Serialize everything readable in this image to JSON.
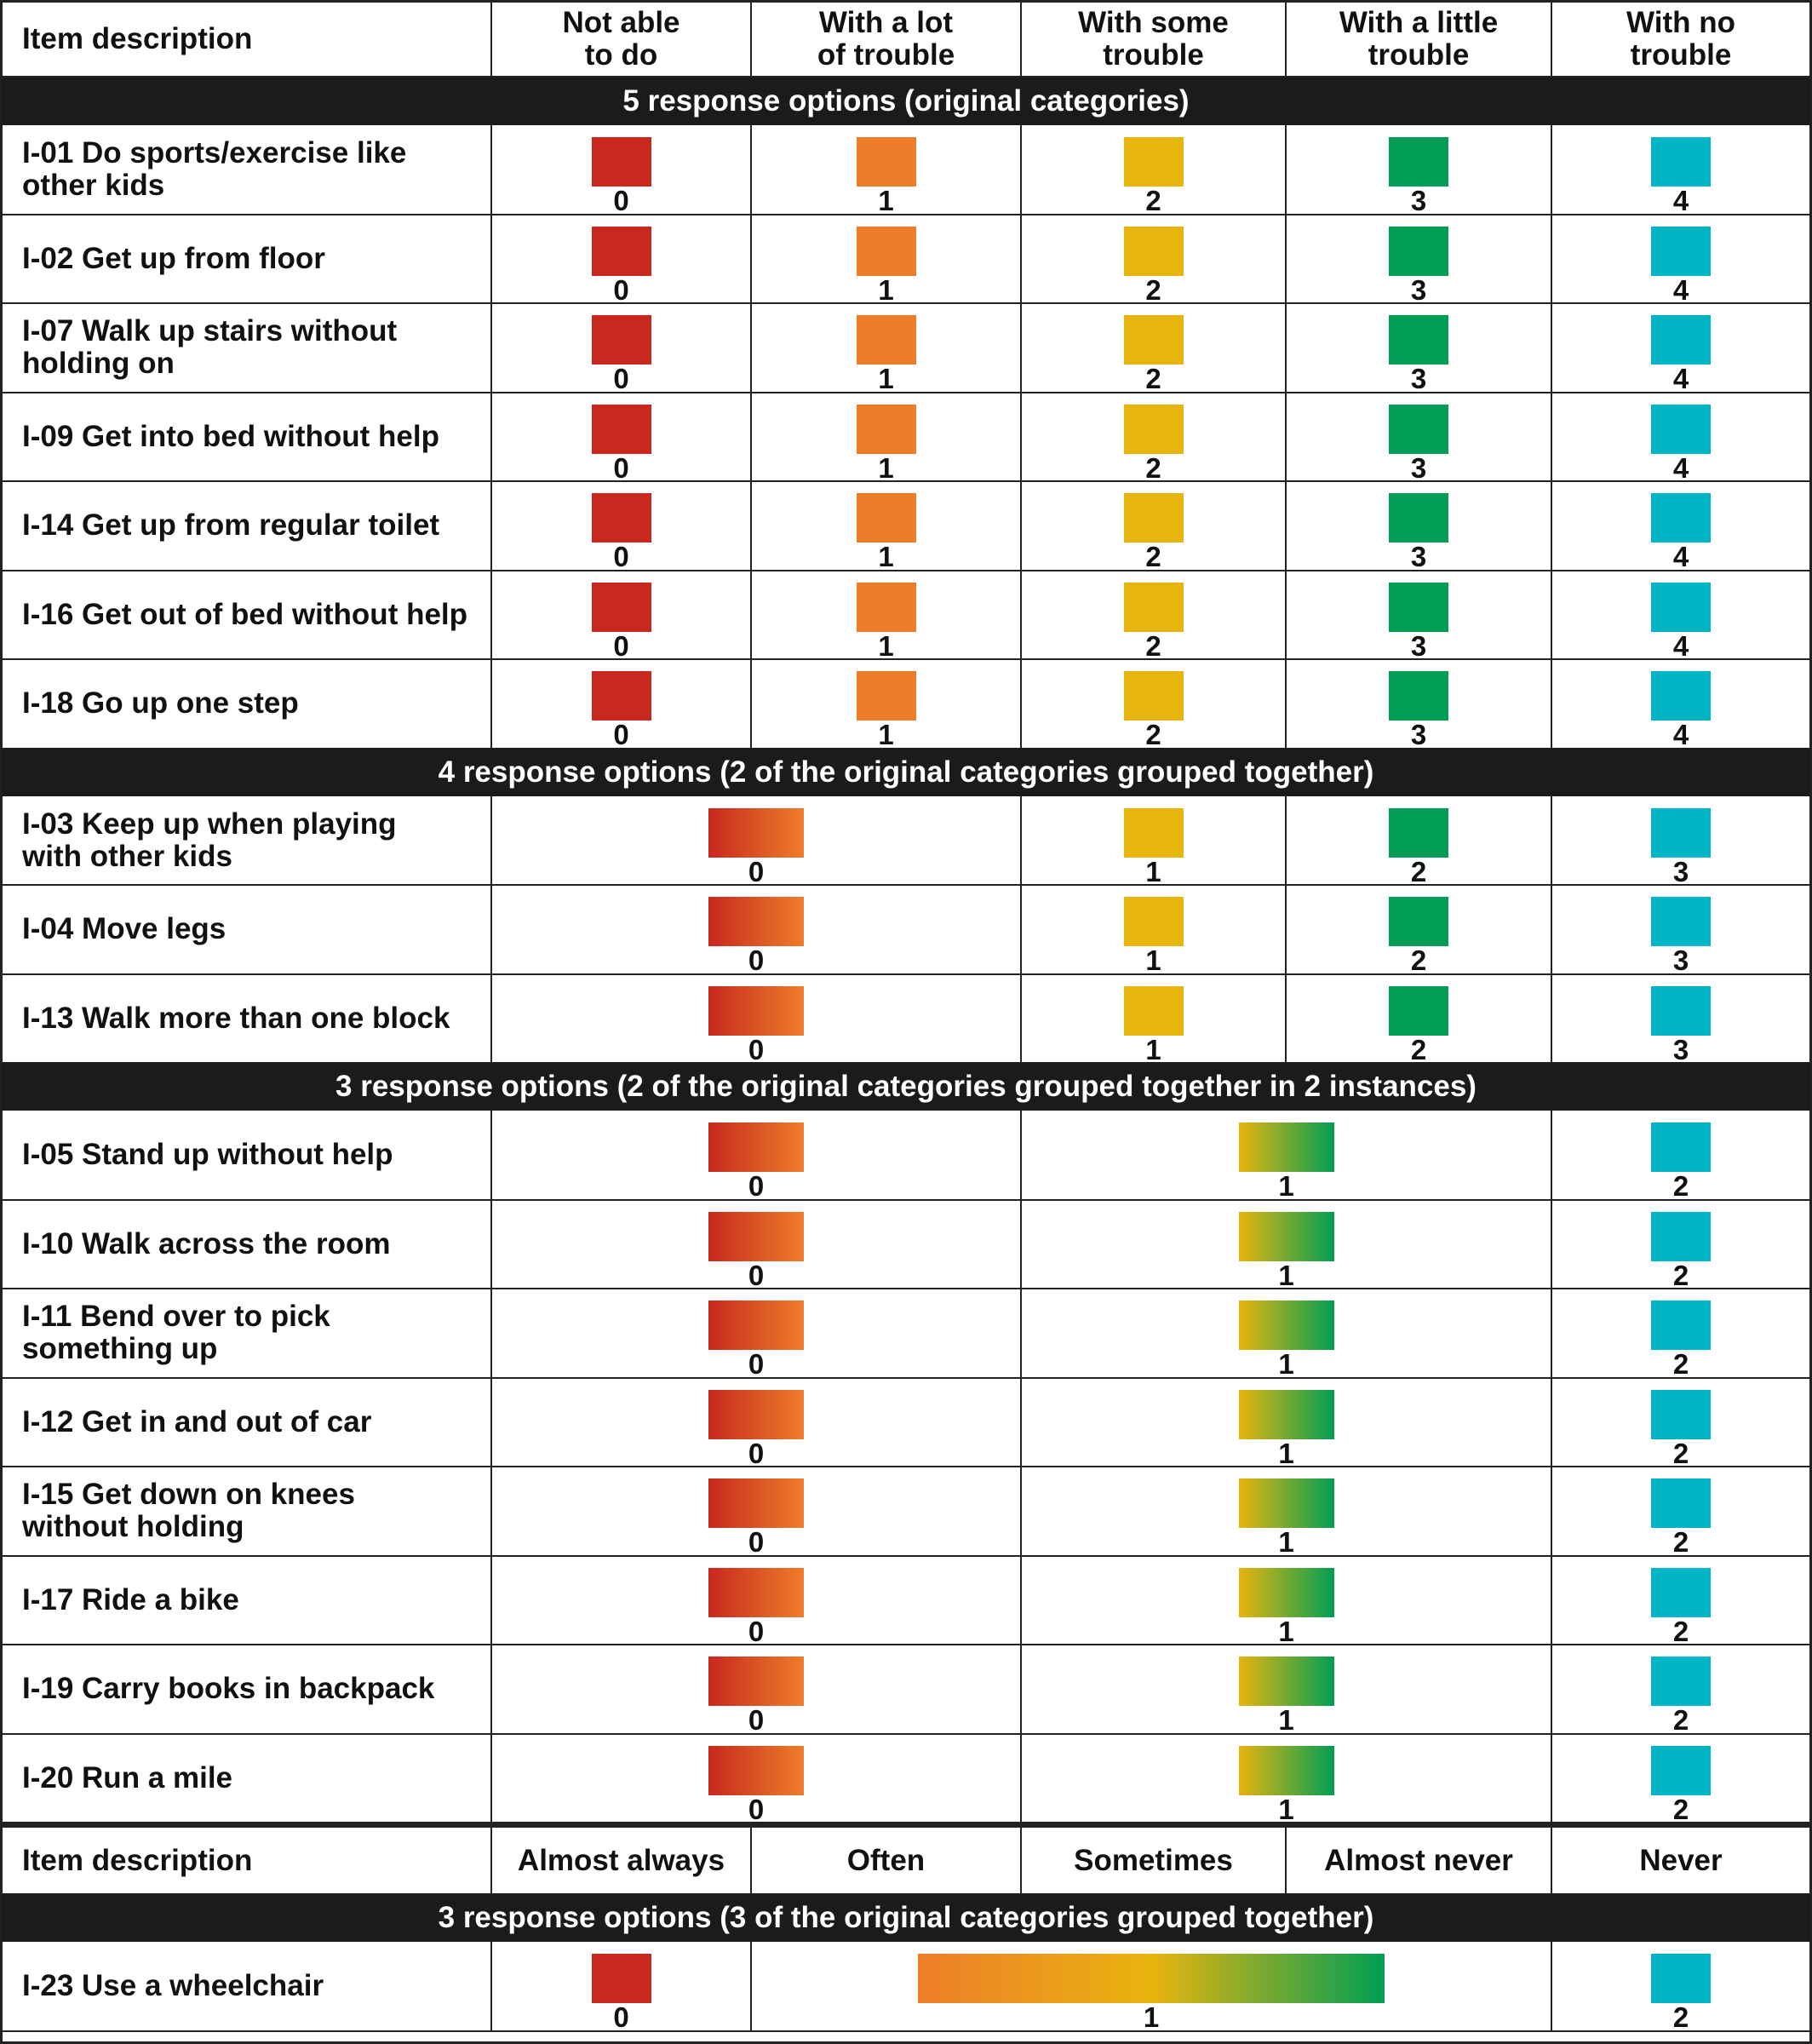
{
  "header_top": {
    "item_label": "Item description",
    "columns": [
      "Not able\nto do",
      "With a lot\nof trouble",
      "With some\ntrouble",
      "With a little\ntrouble",
      "With no\ntrouble"
    ]
  },
  "header_bottom": {
    "item_label": "Item description",
    "columns": [
      "Almost always",
      "Often",
      "Sometimes",
      "Almost never",
      "Never"
    ]
  },
  "colors": {
    "red": "#c8281e",
    "orange": "#ee7d2a",
    "yellow": "#e8b40e",
    "green": "#009e55",
    "teal": "#00b6c6",
    "band": "#1b1b1b"
  },
  "sections": [
    {
      "title": "5 response options (original categories)",
      "items": [
        {
          "label": "I-01 Do sports/exercise like\nother kids"
        },
        {
          "label": "I-02 Get up from floor"
        },
        {
          "label": "I-07 Walk up stairs without\nholding on"
        },
        {
          "label": "I-09 Get into bed without help"
        },
        {
          "label": "I-14 Get up from regular toilet"
        },
        {
          "label": "I-16 Get out of bed without help"
        },
        {
          "label": "I-18 Go up one step"
        }
      ],
      "groups": [
        {
          "span": [
            0,
            0
          ],
          "score": "0",
          "fill": "red"
        },
        {
          "span": [
            1,
            1
          ],
          "score": "1",
          "fill": "orange"
        },
        {
          "span": [
            2,
            2
          ],
          "score": "2",
          "fill": "yellow"
        },
        {
          "span": [
            3,
            3
          ],
          "score": "3",
          "fill": "green"
        },
        {
          "span": [
            4,
            4
          ],
          "score": "4",
          "fill": "teal"
        }
      ]
    },
    {
      "title": "4 response options (2 of the original categories grouped together)",
      "items": [
        {
          "label": "I-03 Keep up when playing\nwith other kids"
        },
        {
          "label": "I-04 Move legs"
        },
        {
          "label": "I-13 Walk more than one block"
        }
      ],
      "groups": [
        {
          "span": [
            0,
            1
          ],
          "score": "0",
          "fill": "red-orange"
        },
        {
          "span": [
            2,
            2
          ],
          "score": "1",
          "fill": "yellow"
        },
        {
          "span": [
            3,
            3
          ],
          "score": "2",
          "fill": "green"
        },
        {
          "span": [
            4,
            4
          ],
          "score": "3",
          "fill": "teal"
        }
      ]
    },
    {
      "title": "3 response options (2 of the original categories grouped together in 2 instances)",
      "items": [
        {
          "label": "I-05 Stand up without help"
        },
        {
          "label": "I-10 Walk across the room"
        },
        {
          "label": "I-11 Bend over to pick\nsomething up"
        },
        {
          "label": "I-12 Get in and out of car"
        },
        {
          "label": "I-15 Get down on knees\nwithout holding"
        },
        {
          "label": "I-17 Ride a bike"
        },
        {
          "label": "I-19 Carry books in backpack"
        },
        {
          "label": "I-20 Run a mile"
        }
      ],
      "groups": [
        {
          "span": [
            0,
            1
          ],
          "score": "0",
          "fill": "red-orange"
        },
        {
          "span": [
            2,
            3
          ],
          "score": "1",
          "fill": "yellow-green"
        },
        {
          "span": [
            4,
            4
          ],
          "score": "2",
          "fill": "teal"
        }
      ]
    }
  ],
  "bottom_section": {
    "title": "3 response options (3 of the original categories grouped together)",
    "items": [
      {
        "label": "I-23 Use a wheelchair"
      }
    ],
    "groups": [
      {
        "span": [
          0,
          0
        ],
        "score": "0",
        "fill": "red"
      },
      {
        "span": [
          1,
          3
        ],
        "score": "1",
        "fill": "orange-yellow-green"
      },
      {
        "span": [
          4,
          4
        ],
        "score": "2",
        "fill": "teal"
      }
    ]
  }
}
